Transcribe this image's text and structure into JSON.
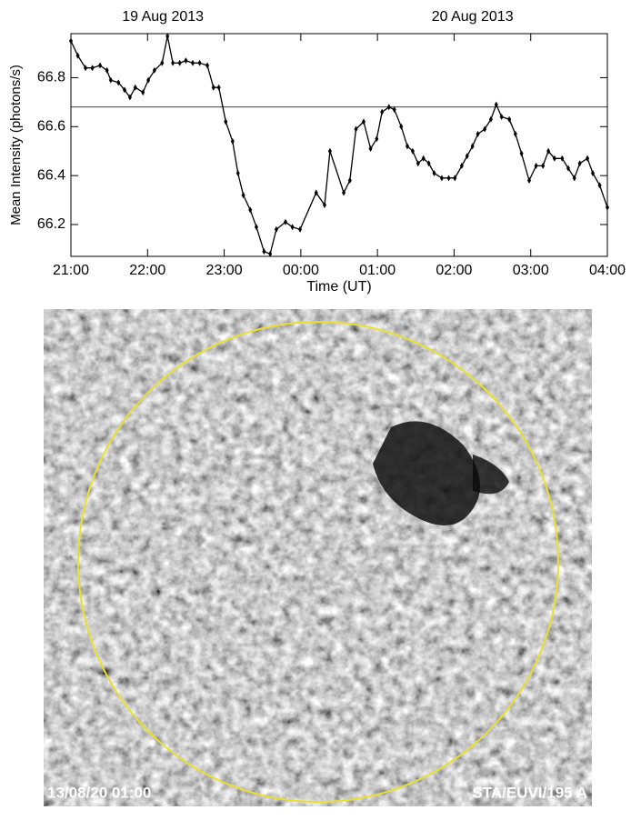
{
  "chart_data": {
    "type": "line",
    "annotations": [
      {
        "text": "19 Aug 2013",
        "x": 22.2
      },
      {
        "text": "20 Aug 2013",
        "x": 26.24
      }
    ],
    "x_label": "Time (UT)",
    "y_label": "Mean Intensity (photons/s)",
    "xlim": [
      21,
      28
    ],
    "xticks": [
      {
        "value": 21,
        "label": "21:00"
      },
      {
        "value": 22,
        "label": "22:00"
      },
      {
        "value": 23,
        "label": "23:00"
      },
      {
        "value": 24,
        "label": "00:00"
      },
      {
        "value": 25,
        "label": "01:00"
      },
      {
        "value": 26,
        "label": "02:00"
      },
      {
        "value": 27,
        "label": "03:00"
      },
      {
        "value": 28,
        "label": "04:00"
      }
    ],
    "ylim": [
      66.07,
      66.98
    ],
    "yticks": [
      66.2,
      66.4,
      66.6,
      66.8
    ],
    "reference_line": 66.68,
    "series": [
      {
        "color": "#000000",
        "x": [
          21.0,
          21.09,
          21.19,
          21.28,
          21.38,
          21.47,
          21.52,
          21.62,
          21.7,
          21.77,
          21.84,
          21.94,
          22.01,
          22.09,
          22.19,
          22.26,
          22.33,
          22.42,
          22.5,
          22.59,
          22.68,
          22.78,
          22.86,
          22.93,
          23.02,
          23.11,
          23.18,
          23.25,
          23.34,
          23.42,
          23.52,
          23.6,
          23.68,
          23.8,
          23.89,
          23.99,
          24.2,
          24.31,
          24.38,
          24.56,
          24.64,
          24.72,
          24.82,
          24.91,
          24.99,
          25.06,
          25.15,
          25.22,
          25.31,
          25.39,
          25.46,
          25.53,
          25.6,
          25.67,
          25.74,
          25.84,
          25.93,
          26.01,
          26.1,
          26.17,
          26.24,
          26.31,
          26.4,
          26.48,
          26.55,
          26.62,
          26.72,
          26.8,
          26.88,
          26.98,
          27.07,
          27.16,
          27.23,
          27.31,
          27.41,
          27.49,
          27.57,
          27.64,
          27.74,
          27.81,
          27.9,
          28.0
        ],
        "values": [
          66.95,
          66.89,
          66.84,
          66.84,
          66.85,
          66.83,
          66.79,
          66.78,
          66.75,
          66.72,
          66.76,
          66.74,
          66.79,
          66.83,
          66.86,
          66.97,
          66.86,
          66.86,
          66.87,
          66.86,
          66.86,
          66.85,
          66.76,
          66.76,
          66.62,
          66.54,
          66.41,
          66.32,
          66.26,
          66.19,
          66.09,
          66.08,
          66.18,
          66.21,
          66.19,
          66.18,
          66.33,
          66.28,
          66.5,
          66.33,
          66.38,
          66.59,
          66.62,
          66.51,
          66.55,
          66.66,
          66.68,
          66.67,
          66.6,
          66.52,
          66.5,
          66.45,
          66.47,
          66.45,
          66.41,
          66.39,
          66.39,
          66.39,
          66.44,
          66.48,
          66.52,
          66.57,
          66.59,
          66.63,
          66.69,
          66.64,
          66.63,
          66.57,
          66.49,
          66.38,
          66.44,
          66.44,
          66.5,
          66.47,
          66.47,
          66.43,
          66.39,
          66.45,
          66.47,
          66.41,
          66.36,
          66.27
        ]
      }
    ]
  },
  "image": {
    "timestamp": "13/08/20 01:00",
    "instrument": "STA/EUVI/195 A"
  }
}
